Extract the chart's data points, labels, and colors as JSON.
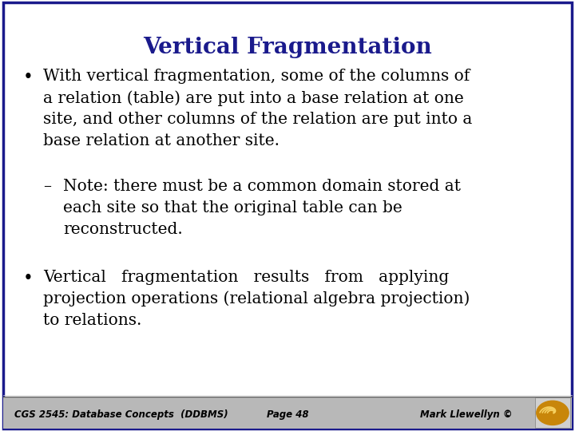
{
  "title": "Vertical Fragmentation",
  "title_color": "#1a1a8c",
  "title_fontsize": 20,
  "bg_color": "#ffffff",
  "border_color": "#1a1a8c",
  "b1_lines": [
    "With vertical fragmentation, some of the columns of",
    "a relation (table) are put into a base relation at one",
    "site, and other columns of the relation are put into a",
    "base relation at another site."
  ],
  "sub_lines": [
    "Note: there must be a common domain stored at",
    "each site so that the original table can be",
    "reconstructed."
  ],
  "b2_lines": [
    "Vertical   fragmentation   results   from   applying",
    "projection operations (relational algebra projection)",
    "to relations."
  ],
  "footer_left": "CGS 2545: Database Concepts  (DDBMS)",
  "footer_center": "Page 48",
  "footer_right": "Mark Llewellyn ©",
  "footer_fontsize": 8.5,
  "text_color": "#000000",
  "body_fontsize": 14.5
}
